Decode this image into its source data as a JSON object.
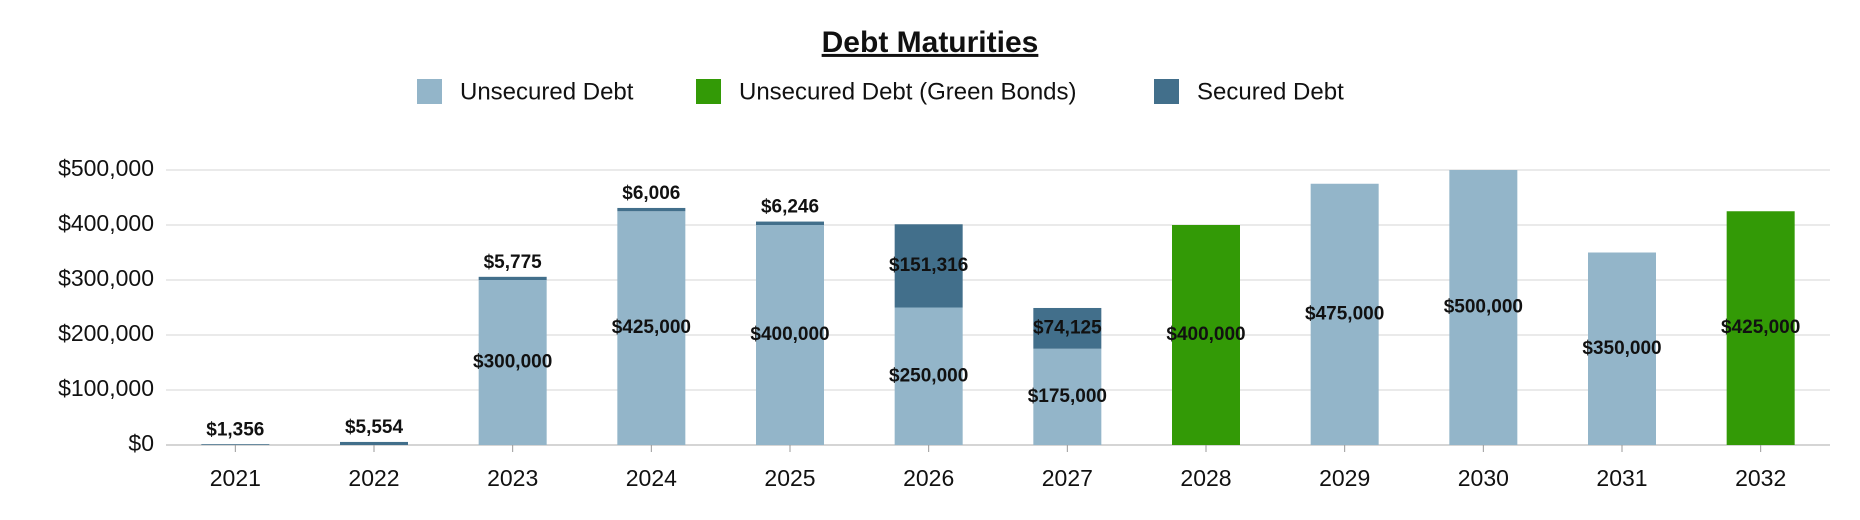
{
  "chart_data": {
    "type": "stacked_bar",
    "title": "Debt Maturities",
    "categories": [
      "2021",
      "2022",
      "2023",
      "2024",
      "2025",
      "2026",
      "2027",
      "2028",
      "2029",
      "2030",
      "2031",
      "2032"
    ],
    "series": [
      {
        "name": "Unsecured Debt",
        "color": "#93b5c9",
        "values": [
          null,
          null,
          300000,
          425000,
          400000,
          250000,
          175000,
          null,
          475000,
          500000,
          350000,
          null
        ],
        "value_labels": [
          null,
          null,
          "$300,000",
          "$425,000",
          "$400,000",
          "$250,000",
          "$175,000",
          null,
          "$475,000",
          "$500,000",
          "$350,000",
          null
        ]
      },
      {
        "name": "Unsecured Debt (Green Bonds)",
        "color": "#339a06",
        "values": [
          null,
          null,
          null,
          null,
          null,
          null,
          null,
          400000,
          null,
          null,
          null,
          425000
        ],
        "value_labels": [
          null,
          null,
          null,
          null,
          null,
          null,
          null,
          "$400,000",
          null,
          null,
          null,
          "$425,000"
        ]
      },
      {
        "name": "Secured Debt",
        "color": "#426f8b",
        "values": [
          1356,
          5554,
          5775,
          6006,
          6246,
          151316,
          74125,
          null,
          null,
          null,
          null,
          null
        ],
        "value_labels": [
          "$1,356",
          "$5,554",
          "$5,775",
          "$6,006",
          "$6,246",
          "$151,316",
          "$74,125",
          null,
          null,
          null,
          null,
          null
        ]
      }
    ],
    "ylim": [
      0,
      500000
    ],
    "yticks": [
      {
        "value": 0,
        "label": "$0"
      },
      {
        "value": 100000,
        "label": "$100,000"
      },
      {
        "value": 200000,
        "label": "$200,000"
      },
      {
        "value": 300000,
        "label": "$300,000"
      },
      {
        "value": 400000,
        "label": "$400,000"
      },
      {
        "value": 500000,
        "label": "$500,000"
      }
    ],
    "grid": true,
    "legend": "top"
  }
}
